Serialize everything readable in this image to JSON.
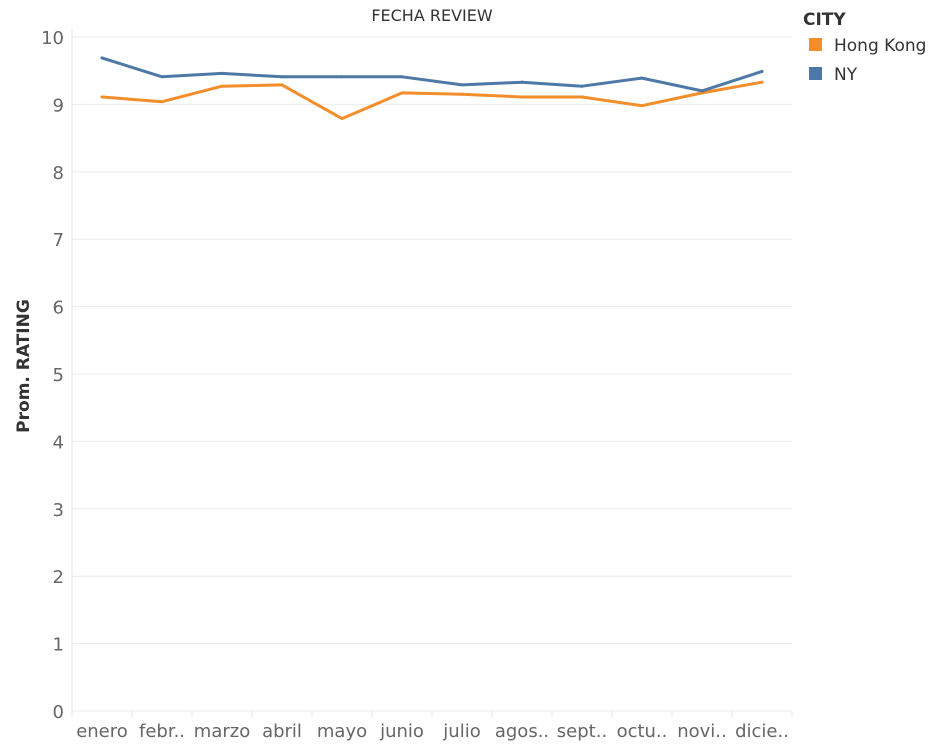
{
  "chart_data": {
    "type": "line",
    "title": "FECHA REVIEW",
    "xlabel": "",
    "ylabel": "Prom. RATING",
    "categories": [
      "enero",
      "febr..",
      "marzo",
      "abril",
      "mayo",
      "junio",
      "julio",
      "agos..",
      "sept..",
      "octu..",
      "novi..",
      "dicie.."
    ],
    "ylim": [
      0,
      10
    ],
    "yticks": [
      "0",
      "1",
      "2",
      "3",
      "4",
      "5",
      "6",
      "7",
      "8",
      "9",
      "10"
    ],
    "grid": true,
    "legend_position": "top-right",
    "legend_title": "CITY",
    "series": [
      {
        "name": "Hong Kong",
        "color": "#f28e2b",
        "values": [
          9.11,
          9.04,
          9.27,
          9.29,
          8.79,
          9.17,
          9.15,
          9.11,
          9.11,
          8.98,
          9.17,
          9.33
        ]
      },
      {
        "name": "NY",
        "color": "#4e79a7",
        "values": [
          9.69,
          9.41,
          9.46,
          9.41,
          9.41,
          9.41,
          9.29,
          9.33,
          9.27,
          9.39,
          9.2,
          9.49
        ]
      }
    ]
  }
}
